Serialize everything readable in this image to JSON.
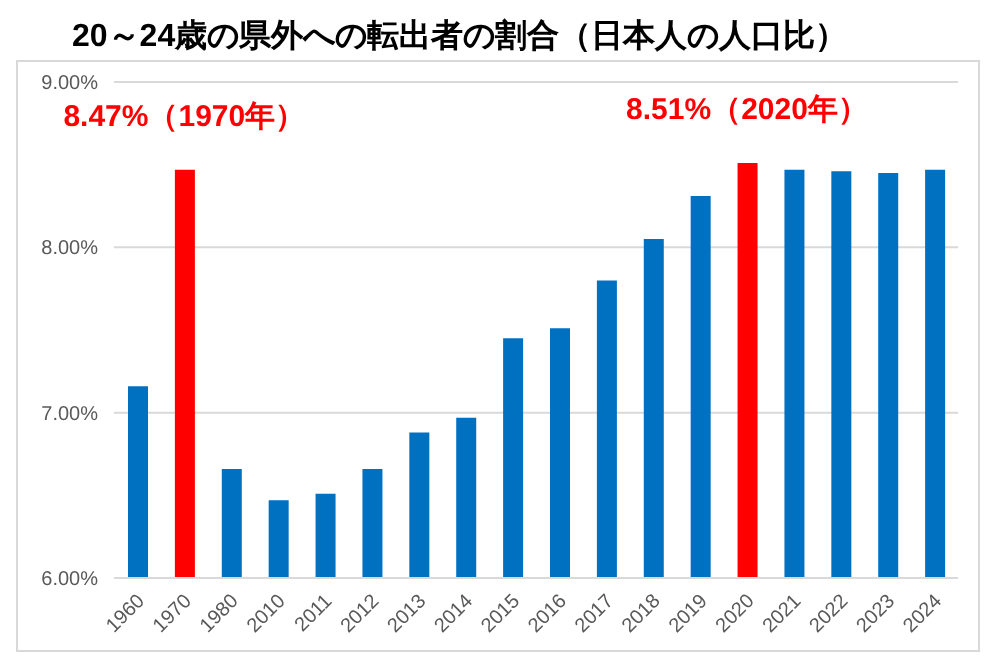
{
  "chart_data": {
    "type": "bar",
    "title": "20～24歳の県外への転出者の割合（日本人の人口比）",
    "categories": [
      "1960",
      "1970",
      "1980",
      "2010",
      "2011",
      "2012",
      "2013",
      "2014",
      "2015",
      "2016",
      "2017",
      "2018",
      "2019",
      "2020",
      "2021",
      "2022",
      "2023",
      "2024"
    ],
    "values": [
      7.16,
      8.47,
      6.66,
      6.47,
      6.51,
      6.66,
      6.88,
      6.97,
      7.45,
      7.51,
      7.8,
      8.05,
      8.31,
      8.51,
      8.47,
      8.46,
      8.45,
      8.47
    ],
    "colors": [
      "#0070c0",
      "#ff0000",
      "#0070c0",
      "#0070c0",
      "#0070c0",
      "#0070c0",
      "#0070c0",
      "#0070c0",
      "#0070c0",
      "#0070c0",
      "#0070c0",
      "#0070c0",
      "#0070c0",
      "#ff0000",
      "#0070c0",
      "#0070c0",
      "#0070c0",
      "#0070c0"
    ],
    "ylim": [
      6,
      9
    ],
    "yticks": [
      {
        "value": 6,
        "label": "6.00%"
      },
      {
        "value": 7,
        "label": "7.00%"
      },
      {
        "value": 8,
        "label": "8.00%"
      },
      {
        "value": 9,
        "label": "9.00%"
      }
    ],
    "grid": "y",
    "annotations": [
      {
        "text": "8.47%（1970年）",
        "x": "1970",
        "y": 8.47
      },
      {
        "text": "8.51%（2020年）",
        "x": "2020",
        "y": 8.51
      }
    ]
  }
}
